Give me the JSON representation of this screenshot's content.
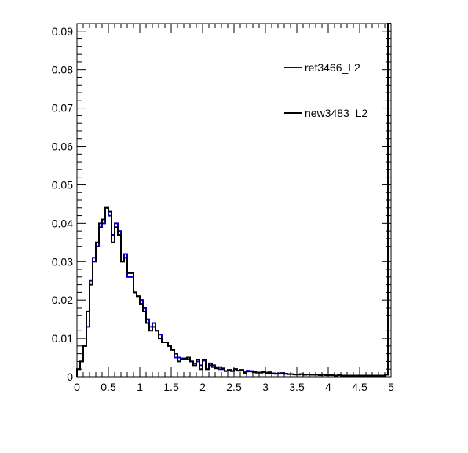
{
  "chart_data": {
    "type": "histogram",
    "title": "",
    "xlabel": "",
    "ylabel": "",
    "xlim": [
      0,
      5
    ],
    "ylim": [
      0,
      0.092
    ],
    "grid": false,
    "legend_position": "top-right",
    "x_ticks": [
      {
        "value": 0,
        "label": "0"
      },
      {
        "value": 0.5,
        "label": "0.5"
      },
      {
        "value": 1,
        "label": "1"
      },
      {
        "value": 1.5,
        "label": "1.5"
      },
      {
        "value": 2,
        "label": "2"
      },
      {
        "value": 2.5,
        "label": "2.5"
      },
      {
        "value": 3,
        "label": "3"
      },
      {
        "value": 3.5,
        "label": "3.5"
      },
      {
        "value": 4,
        "label": "4"
      },
      {
        "value": 4.5,
        "label": "4.5"
      },
      {
        "value": 5,
        "label": "5"
      }
    ],
    "y_ticks": [
      {
        "value": 0,
        "label": "0"
      },
      {
        "value": 0.01,
        "label": "0.01"
      },
      {
        "value": 0.02,
        "label": "0.02"
      },
      {
        "value": 0.03,
        "label": "0.03"
      },
      {
        "value": 0.04,
        "label": "0.04"
      },
      {
        "value": 0.05,
        "label": "0.05"
      },
      {
        "value": 0.06,
        "label": "0.06"
      },
      {
        "value": 0.07,
        "label": "0.07"
      },
      {
        "value": 0.08,
        "label": "0.08"
      },
      {
        "value": 0.09,
        "label": "0.09"
      }
    ],
    "bin_width": 0.05,
    "series": [
      {
        "name": "ref3466_L2",
        "color": "#0000cc",
        "values": [
          0.002,
          0.004,
          0.008,
          0.013,
          0.025,
          0.031,
          0.034,
          0.039,
          0.04,
          0.044,
          0.042,
          0.037,
          0.04,
          0.038,
          0.03,
          0.032,
          0.026,
          0.026,
          0.022,
          0.021,
          0.02,
          0.018,
          0.015,
          0.013,
          0.014,
          0.012,
          0.011,
          0.009,
          0.009,
          0.008,
          0.007,
          0.005,
          0.005,
          0.0048,
          0.0045,
          0.0045,
          0.004,
          0.0035,
          0.004,
          0.003,
          0.0042,
          0.002,
          0.003,
          0.0025,
          0.0025,
          0.002,
          0.0022,
          0.0015,
          0.0018,
          0.0015,
          0.002,
          0.0016,
          0.0018,
          0.001,
          0.0016,
          0.0015,
          0.0012,
          0.0011,
          0.0011,
          0.0012,
          0.001,
          0.0012,
          0.0009,
          0.0008,
          0.0009,
          0.001,
          0.0008,
          0.0007,
          0.0007,
          0.0006,
          0.0006,
          0.0007,
          0.0005,
          0.0006,
          0.0005,
          0.0005,
          0.0005,
          0.0004,
          0.0005,
          0.0004,
          0.0004,
          0.0004,
          0.0003,
          0.0004,
          0.0003,
          0.0003,
          0.0003,
          0.0003,
          0.0003,
          0.0003,
          0.0003,
          0.0003,
          0.0003,
          0.0003,
          0.0003,
          0.0003,
          0.0003,
          0.0003,
          0.0005,
          0.09
        ]
      },
      {
        "name": "new3483_L2",
        "color": "#000000",
        "values": [
          0.002,
          0.004,
          0.008,
          0.017,
          0.024,
          0.03,
          0.035,
          0.04,
          0.041,
          0.044,
          0.043,
          0.035,
          0.039,
          0.037,
          0.03,
          0.031,
          0.027,
          0.027,
          0.022,
          0.021,
          0.019,
          0.017,
          0.014,
          0.012,
          0.013,
          0.012,
          0.01,
          0.009,
          0.009,
          0.008,
          0.007,
          0.006,
          0.004,
          0.0045,
          0.0048,
          0.005,
          0.004,
          0.003,
          0.0045,
          0.002,
          0.0045,
          0.002,
          0.0035,
          0.003,
          0.0022,
          0.0025,
          0.002,
          0.0015,
          0.0018,
          0.0015,
          0.002,
          0.0016,
          0.0018,
          0.0012,
          0.0014,
          0.0014,
          0.0012,
          0.0011,
          0.0011,
          0.0012,
          0.0011,
          0.001,
          0.0009,
          0.0008,
          0.0009,
          0.0009,
          0.0008,
          0.0007,
          0.0007,
          0.0006,
          0.0006,
          0.0007,
          0.0005,
          0.0006,
          0.0005,
          0.0005,
          0.0005,
          0.0004,
          0.0005,
          0.0004,
          0.0004,
          0.0004,
          0.0003,
          0.0004,
          0.0003,
          0.0003,
          0.0003,
          0.0003,
          0.0003,
          0.0003,
          0.0003,
          0.0003,
          0.0003,
          0.0003,
          0.0003,
          0.0003,
          0.0003,
          0.0003,
          0.0005,
          0.092
        ]
      }
    ]
  }
}
